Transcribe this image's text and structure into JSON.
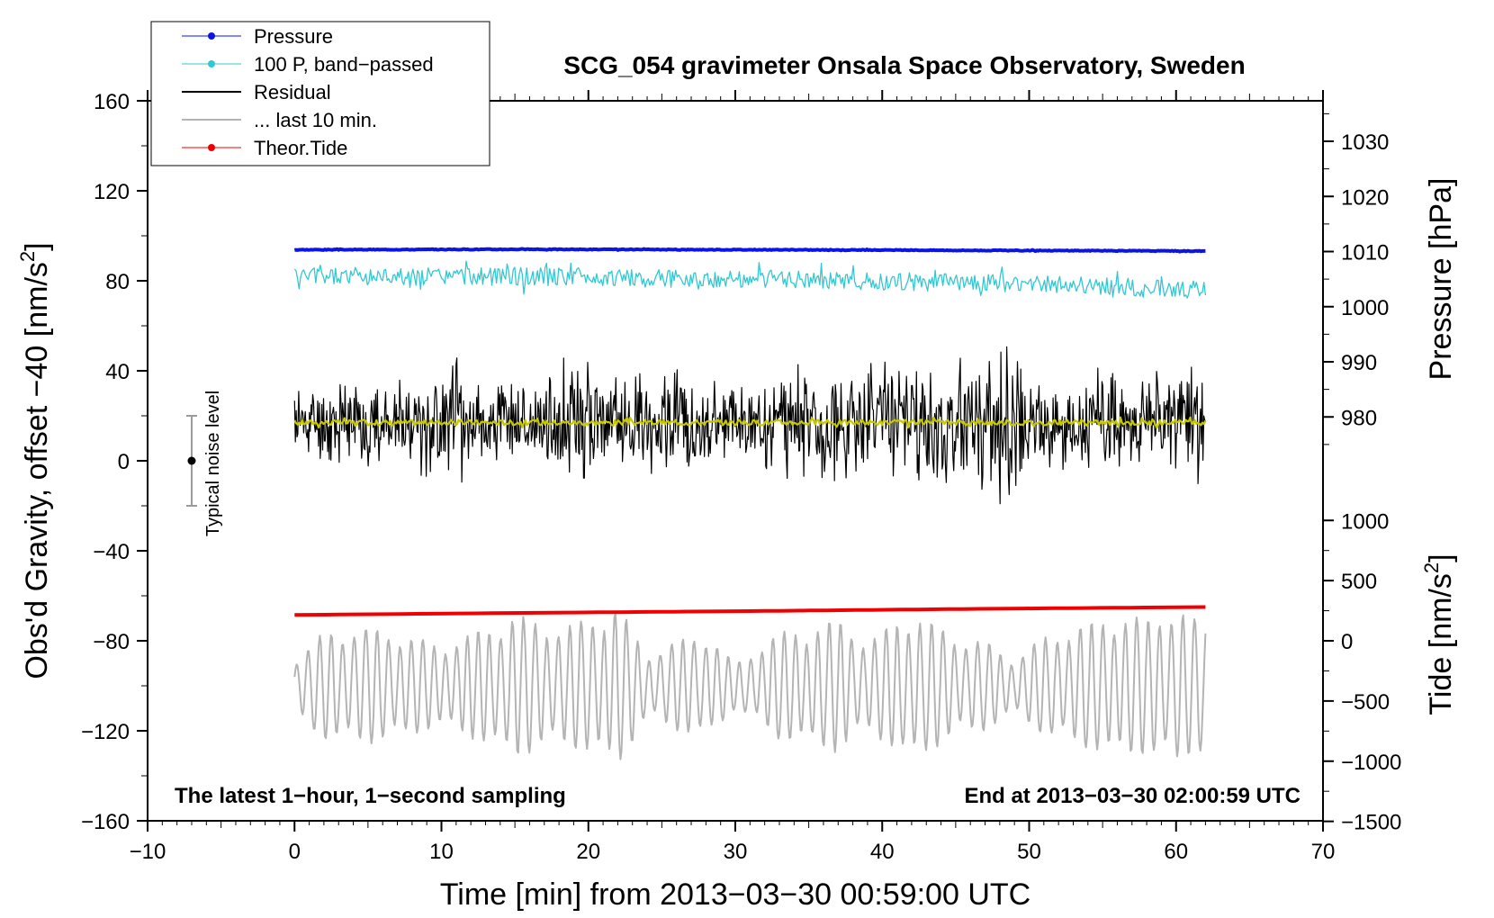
{
  "colors": {
    "pressure": "#0a14e6",
    "band_passed": "#32c8d2",
    "residual": "#000000",
    "last10": "#b4b4b4",
    "tide": "#f00000",
    "smooth": "#c8c800",
    "noise_bar": "#9a9a9a"
  },
  "chart_data": {
    "type": "line",
    "title": "SCG_054 gravimeter Onsala Space Observatory, Sweden",
    "xlabel": "Time [min] from 2013−03−30 00:59:00 UTC",
    "ylabel_left": "Obs'd Gravity, offset −40 [nm/s",
    "ylabel_left_sup": "2",
    "ylabel_left_end": "]",
    "ylabel_pressure": "Pressure [hPa]",
    "ylabel_tide": "Tide [nm/s",
    "ylabel_tide_sup": "2",
    "ylabel_tide_end": "]",
    "xlim": [
      -10,
      70
    ],
    "ylim_left": [
      -160,
      160
    ],
    "x_ticks": [
      -10,
      0,
      10,
      20,
      30,
      40,
      50,
      60,
      70
    ],
    "x_tick_labels": [
      "−10",
      "0",
      "10",
      "20",
      "30",
      "40",
      "50",
      "60",
      "70"
    ],
    "y_ticks_left": [
      160,
      120,
      80,
      40,
      0,
      -40,
      -80,
      -120,
      -160
    ],
    "y_tick_labels_left": [
      "160",
      "120",
      "80",
      "40",
      "0",
      "−40",
      "−80",
      "−120",
      "−160"
    ],
    "pressure_axis": {
      "ticks": [
        1030,
        1020,
        1010,
        1000,
        990,
        980
      ],
      "tick_labels": [
        "1030",
        "1020",
        "1010",
        "1000",
        "990",
        "980"
      ],
      "ref_value": 1010,
      "ref_left": 93,
      "left_units_per_hpa": 2.45
    },
    "tide_axis": {
      "ticks": [
        1000,
        500,
        0,
        -500,
        -1000,
        -1500
      ],
      "tick_labels": [
        "1000",
        "500",
        "0",
        "−500",
        "−1000",
        "−1500"
      ],
      "ref_value": 0,
      "ref_left": -80,
      "left_units_per_nms2": 0.0535
    },
    "notes": {
      "left": "The latest 1−hour, 1−second sampling",
      "right": "End at 2013−03−30 02:00:59 UTC"
    },
    "noise_indicator": {
      "label": "Typical noise level",
      "x": -7,
      "center": 0,
      "half_range": 20
    },
    "legend": [
      {
        "label": "Pressure",
        "style": "line-dot",
        "color_key": "pressure"
      },
      {
        "label": "100 P, band−passed",
        "style": "line-dot",
        "color_key": "band_passed"
      },
      {
        "label": "Residual",
        "style": "line",
        "color_key": "residual"
      },
      {
        "label": "... last 10 min.",
        "style": "line",
        "color_key": "last10"
      },
      {
        "label": "Theor.Tide",
        "style": "line-dot",
        "color_key": "tide"
      }
    ],
    "series": [
      {
        "name": "Pressure",
        "key": "pressure",
        "x_range": [
          0,
          62
        ],
        "values": [
          93.8,
          93.9,
          94.0,
          93.9,
          93.8,
          93.7,
          93.5,
          93.4,
          93.2
        ],
        "noise": 0.15,
        "seed": 3,
        "width": 4
      },
      {
        "name": "100 P, band−passed",
        "key": "band_passed",
        "x_range": [
          0,
          62
        ],
        "values": [
          82,
          82,
          82,
          81,
          81,
          80,
          79,
          78,
          76
        ],
        "noise": 4,
        "seed": 5,
        "width": 1.3
      },
      {
        "name": "Residual",
        "key": "residual",
        "x_range": [
          0,
          62
        ],
        "values": [
          17,
          17,
          17,
          17,
          17,
          17,
          17,
          17,
          17
        ],
        "envelope": [
          [
            0,
            22
          ],
          [
            1,
            18
          ],
          [
            2,
            22
          ],
          [
            5,
            24
          ],
          [
            7,
            18
          ],
          [
            8,
            26
          ],
          [
            10,
            24
          ],
          [
            11,
            34
          ],
          [
            12,
            22
          ],
          [
            14,
            24
          ],
          [
            16,
            22
          ],
          [
            18,
            30
          ],
          [
            19,
            40
          ],
          [
            20,
            34
          ],
          [
            21,
            24
          ],
          [
            24,
            28
          ],
          [
            26,
            26
          ],
          [
            28,
            24
          ],
          [
            30,
            20
          ],
          [
            32,
            22
          ],
          [
            34,
            26
          ],
          [
            36,
            30
          ],
          [
            38,
            26
          ],
          [
            40,
            34
          ],
          [
            41,
            30
          ],
          [
            42,
            34
          ],
          [
            44,
            28
          ],
          [
            46,
            30
          ],
          [
            47,
            38
          ],
          [
            48,
            44
          ],
          [
            49,
            34
          ],
          [
            50,
            24
          ],
          [
            52,
            22
          ],
          [
            55,
            26
          ],
          [
            57,
            22
          ],
          [
            59,
            26
          ],
          [
            60,
            28
          ],
          [
            62,
            32
          ]
        ],
        "seed": 11,
        "width": 1.2,
        "random": true
      },
      {
        "name": "Residual smoothed",
        "key": "smooth",
        "x_range": [
          0,
          62
        ],
        "values": [
          17,
          17,
          17,
          17,
          17,
          17,
          17,
          17,
          17
        ],
        "noise": 1.2,
        "seed": 17,
        "width": 2.2
      },
      {
        "name": "Theor.Tide",
        "key": "tide",
        "x_range": [
          0,
          62
        ],
        "values": [
          -68.5,
          -67.6,
          -66.8,
          -65.8,
          -65.0
        ],
        "noise": 0,
        "seed": 1,
        "width": 4
      },
      {
        "name": "... last 10 min.",
        "key": "last10",
        "x_range": [
          0,
          62
        ],
        "values": [
          -100,
          -100,
          -100,
          -100,
          -100,
          -100,
          -100,
          -100,
          -100
        ],
        "oscillation": true,
        "amp_envelope": [
          [
            0,
            12
          ],
          [
            2,
            24
          ],
          [
            5,
            26
          ],
          [
            8,
            22
          ],
          [
            10,
            18
          ],
          [
            13,
            26
          ],
          [
            15,
            32
          ],
          [
            18,
            26
          ],
          [
            20,
            30
          ],
          [
            22,
            36
          ],
          [
            24,
            14
          ],
          [
            26,
            20
          ],
          [
            28,
            24
          ],
          [
            30,
            10
          ],
          [
            33,
            24
          ],
          [
            35,
            26
          ],
          [
            37,
            30
          ],
          [
            39,
            20
          ],
          [
            42,
            34
          ],
          [
            45,
            22
          ],
          [
            47,
            20
          ],
          [
            49,
            12
          ],
          [
            51,
            22
          ],
          [
            53,
            26
          ],
          [
            56,
            32
          ],
          [
            58,
            30
          ],
          [
            60,
            36
          ],
          [
            61,
            30
          ]
        ],
        "period": 0.78,
        "seed": 23,
        "width": 2
      }
    ]
  }
}
